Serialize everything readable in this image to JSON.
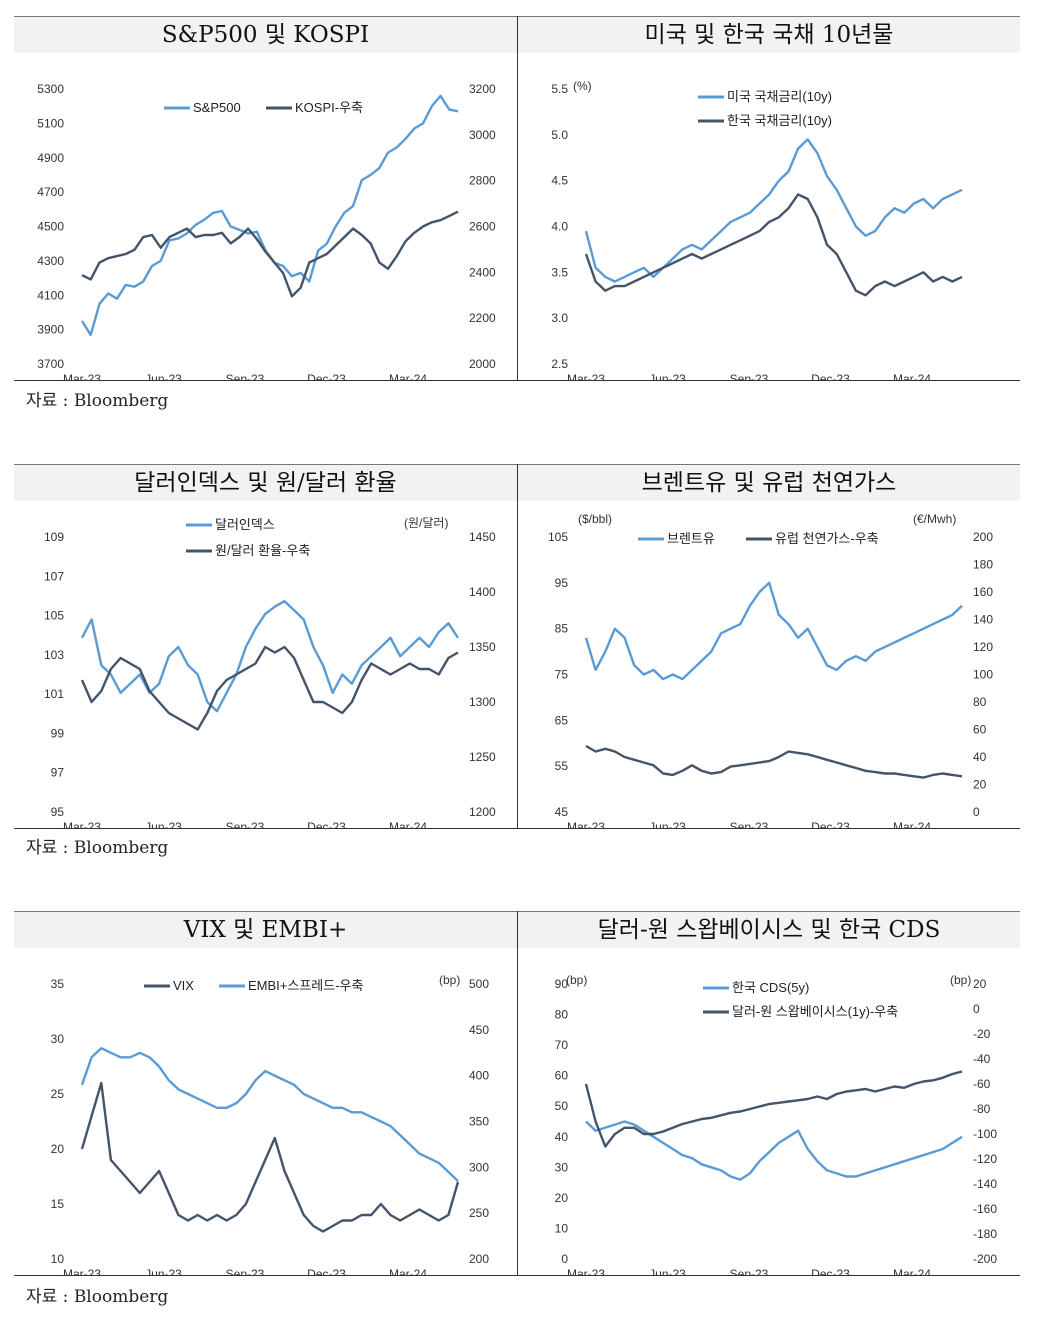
{
  "source_label": "자료 : Bloomberg",
  "colors": {
    "blue": "#5b9bd5",
    "navy": "#44546a"
  },
  "chart_data": [
    {
      "title": "S&P500 및 KOSPI",
      "type": "line",
      "x_ticks": [
        "Mar-23",
        "Jun-23",
        "Sep-23",
        "Dec-23",
        "Mar-24"
      ],
      "left_axis": {
        "ticks": [
          "5300",
          "5100",
          "4900",
          "4700",
          "4500",
          "4300",
          "4100",
          "3900",
          "3700"
        ],
        "unit": "",
        "range": [
          3700,
          5300
        ]
      },
      "right_axis": {
        "ticks": [
          "3200",
          "3000",
          "2800",
          "2600",
          "2400",
          "2200",
          "2000"
        ],
        "unit": "",
        "range": [
          2000,
          3300
        ]
      },
      "series": [
        {
          "name": "S&P500",
          "axis": "left",
          "color": "blue",
          "values": [
            3950,
            3870,
            4050,
            4110,
            4080,
            4160,
            4150,
            4180,
            4270,
            4300,
            4420,
            4430,
            4460,
            4510,
            4540,
            4580,
            4590,
            4500,
            4480,
            4460,
            4470,
            4360,
            4290,
            4270,
            4210,
            4230,
            4180,
            4360,
            4400,
            4500,
            4580,
            4620,
            4770,
            4800,
            4840,
            4930,
            4960,
            5010,
            5070,
            5100,
            5200,
            5260,
            5180,
            5170
          ]
        },
        {
          "name": "KOSPI-우축",
          "axis": "right",
          "color": "navy",
          "values": [
            2420,
            2400,
            2480,
            2500,
            2510,
            2520,
            2540,
            2600,
            2610,
            2550,
            2600,
            2620,
            2640,
            2600,
            2610,
            2610,
            2620,
            2570,
            2600,
            2640,
            2590,
            2530,
            2480,
            2430,
            2320,
            2360,
            2480,
            2500,
            2520,
            2560,
            2600,
            2640,
            2610,
            2570,
            2480,
            2450,
            2510,
            2580,
            2620,
            2650,
            2670,
            2680,
            2700,
            2720
          ]
        }
      ]
    },
    {
      "title": "미국 및 한국 국채 10년물",
      "type": "line",
      "unit_label": "(%)",
      "x_ticks": [
        "Mar-23",
        "Jun-23",
        "Sep-23",
        "Dec-23",
        "Mar-24"
      ],
      "left_axis": {
        "ticks": [
          "5.5",
          "5.0",
          "4.5",
          "4.0",
          "3.5",
          "3.0",
          "2.5"
        ],
        "range": [
          2.5,
          5.5
        ]
      },
      "series": [
        {
          "name": "미국 국채금리(10y)",
          "axis": "left",
          "color": "blue",
          "values": [
            3.95,
            3.55,
            3.45,
            3.4,
            3.45,
            3.5,
            3.55,
            3.45,
            3.55,
            3.65,
            3.75,
            3.8,
            3.75,
            3.85,
            3.95,
            4.05,
            4.1,
            4.15,
            4.25,
            4.35,
            4.5,
            4.6,
            4.85,
            4.95,
            4.8,
            4.55,
            4.4,
            4.2,
            4.0,
            3.9,
            3.95,
            4.1,
            4.2,
            4.15,
            4.25,
            4.3,
            4.2,
            4.3,
            4.35,
            4.4
          ]
        },
        {
          "name": "한국 국채금리(10y)",
          "axis": "left",
          "color": "navy",
          "values": [
            3.7,
            3.4,
            3.3,
            3.35,
            3.35,
            3.4,
            3.45,
            3.5,
            3.55,
            3.6,
            3.65,
            3.7,
            3.65,
            3.7,
            3.75,
            3.8,
            3.85,
            3.9,
            3.95,
            4.05,
            4.1,
            4.2,
            4.35,
            4.3,
            4.1,
            3.8,
            3.7,
            3.5,
            3.3,
            3.25,
            3.35,
            3.4,
            3.35,
            3.4,
            3.45,
            3.5,
            3.4,
            3.45,
            3.4,
            3.45
          ]
        }
      ]
    },
    {
      "title": "달러인덱스 및 원/달러 환율",
      "type": "line",
      "unit_label_right": "(원/달러)",
      "x_ticks": [
        "Mar-23",
        "Jun-23",
        "Sep-23",
        "Dec-23",
        "Mar-24"
      ],
      "left_axis": {
        "ticks": [
          "109",
          "107",
          "105",
          "103",
          "101",
          "99",
          "97",
          "95"
        ],
        "range": [
          95,
          110
        ]
      },
      "right_axis": {
        "ticks": [
          "1450",
          "1400",
          "1350",
          "1300",
          "1250",
          "1200"
        ],
        "range": [
          1200,
          1450
        ]
      },
      "series": [
        {
          "name": "달러인덱스",
          "axis": "left",
          "color": "blue",
          "values": [
            104.5,
            105.5,
            103.0,
            102.5,
            101.5,
            102.0,
            102.5,
            101.5,
            102.0,
            103.5,
            104.0,
            103.0,
            102.5,
            101.0,
            100.5,
            101.5,
            102.5,
            104.0,
            105.0,
            105.8,
            106.2,
            106.5,
            106.0,
            105.5,
            104.0,
            103.0,
            101.5,
            102.5,
            102.0,
            103.0,
            103.5,
            104.0,
            104.5,
            103.5,
            104.0,
            104.5,
            104.0,
            104.8,
            105.3,
            104.5
          ]
        },
        {
          "name": "원/달러 환율-우축",
          "axis": "right",
          "color": "navy",
          "values": [
            1320,
            1300,
            1310,
            1330,
            1340,
            1335,
            1330,
            1310,
            1300,
            1290,
            1285,
            1280,
            1275,
            1290,
            1310,
            1320,
            1325,
            1330,
            1335,
            1350,
            1345,
            1350,
            1340,
            1320,
            1300,
            1300,
            1295,
            1290,
            1300,
            1320,
            1335,
            1330,
            1325,
            1330,
            1335,
            1330,
            1330,
            1325,
            1340,
            1345
          ]
        }
      ]
    },
    {
      "title": "브렌트유 및 유럽 천연가스",
      "type": "line",
      "unit_label_left": "($/bbl)",
      "unit_label_right": "(€/Mwh)",
      "x_ticks": [
        "Mar-23",
        "Jun-23",
        "Sep-23",
        "Dec-23",
        "Mar-24"
      ],
      "left_axis": {
        "ticks": [
          "105",
          "95",
          "85",
          "75",
          "65",
          "55",
          "45"
        ],
        "range": [
          45,
          105
        ]
      },
      "right_axis": {
        "ticks": [
          "200",
          "180",
          "160",
          "140",
          "120",
          "100",
          "80",
          "60",
          "40",
          "20",
          "0"
        ],
        "range": [
          0,
          200
        ]
      },
      "series": [
        {
          "name": "브렌트유",
          "axis": "left",
          "color": "blue",
          "values": [
            83,
            76,
            80,
            85,
            83,
            77,
            75,
            76,
            74,
            75,
            74,
            76,
            78,
            80,
            84,
            85,
            86,
            90,
            93,
            95,
            88,
            86,
            83,
            85,
            81,
            77,
            76,
            78,
            79,
            78,
            80,
            81,
            82,
            83,
            84,
            85,
            86,
            87,
            88,
            90
          ]
        },
        {
          "name": "유럽 천연가스-우축",
          "axis": "right",
          "color": "navy",
          "values": [
            48,
            44,
            46,
            44,
            40,
            38,
            36,
            34,
            28,
            27,
            30,
            34,
            30,
            28,
            29,
            33,
            34,
            35,
            36,
            37,
            40,
            44,
            43,
            42,
            40,
            38,
            36,
            34,
            32,
            30,
            29,
            28,
            28,
            27,
            26,
            25,
            27,
            28,
            27,
            26
          ]
        }
      ]
    },
    {
      "title": "VIX 및 EMBI+",
      "type": "line",
      "unit_label_right": "(bp)",
      "x_ticks": [
        "Mar-23",
        "Jun-23",
        "Sep-23",
        "Dec-23",
        "Mar-24"
      ],
      "left_axis": {
        "ticks": [
          "35",
          "30",
          "25",
          "20",
          "15",
          "10"
        ],
        "range": [
          10,
          35
        ]
      },
      "right_axis": {
        "ticks": [
          "500",
          "450",
          "400",
          "350",
          "300",
          "250",
          "200"
        ],
        "range": [
          200,
          500
        ]
      },
      "series": [
        {
          "name": "VIX",
          "axis": "left",
          "color": "navy",
          "values": [
            20,
            23,
            26,
            19,
            18,
            17,
            16,
            17,
            18,
            16,
            14,
            13.5,
            14,
            13.5,
            14,
            13.5,
            14,
            15,
            17,
            19,
            21,
            18,
            16,
            14,
            13,
            12.5,
            13,
            13.5,
            13.5,
            14,
            14,
            15,
            14,
            13.5,
            14,
            14.5,
            14,
            13.5,
            14,
            17
          ]
        },
        {
          "name": "EMBI+스프레드-우축",
          "axis": "right",
          "color": "blue",
          "values": [
            390,
            420,
            430,
            425,
            420,
            420,
            425,
            420,
            410,
            395,
            385,
            380,
            375,
            370,
            365,
            365,
            370,
            380,
            395,
            405,
            400,
            395,
            390,
            380,
            375,
            370,
            365,
            365,
            360,
            360,
            355,
            350,
            345,
            335,
            325,
            315,
            310,
            305,
            295,
            285
          ]
        }
      ]
    },
    {
      "title": "달러-원 스왑베이시스 및 한국 CDS",
      "type": "line",
      "unit_label_left": "(bp)",
      "unit_label_right": "(bp)",
      "x_ticks": [
        "Mar-23",
        "Jun-23",
        "Sep-23",
        "Dec-23",
        "Mar-24"
      ],
      "left_axis": {
        "ticks": [
          "90",
          "80",
          "70",
          "60",
          "50",
          "40",
          "30",
          "20",
          "10",
          "0"
        ],
        "range": [
          0,
          90
        ]
      },
      "right_axis": {
        "ticks": [
          "20",
          "0",
          "-20",
          "-40",
          "-60",
          "-80",
          "-100",
          "-120",
          "-140",
          "-160",
          "-180",
          "-200"
        ],
        "range": [
          -200,
          20
        ]
      },
      "series": [
        {
          "name": "한국 CDS(5y)",
          "axis": "left",
          "color": "blue",
          "values": [
            45,
            42,
            43,
            44,
            45,
            44,
            42,
            40,
            38,
            36,
            34,
            33,
            31,
            30,
            29,
            27,
            26,
            28,
            32,
            35,
            38,
            40,
            42,
            36,
            32,
            29,
            28,
            27,
            27,
            28,
            29,
            30,
            31,
            32,
            33,
            34,
            35,
            36,
            38,
            40
          ]
        },
        {
          "name": "달러-원 스왑베이시스(1y)-우축",
          "axis": "right",
          "color": "navy",
          "values": [
            -60,
            -90,
            -110,
            -100,
            -95,
            -95,
            -100,
            -100,
            -98,
            -95,
            -92,
            -90,
            -88,
            -87,
            -85,
            -83,
            -82,
            -80,
            -78,
            -76,
            -75,
            -74,
            -73,
            -72,
            -70,
            -72,
            -68,
            -66,
            -65,
            -64,
            -66,
            -64,
            -62,
            -63,
            -60,
            -58,
            -57,
            -55,
            -52,
            -50
          ]
        }
      ]
    }
  ]
}
